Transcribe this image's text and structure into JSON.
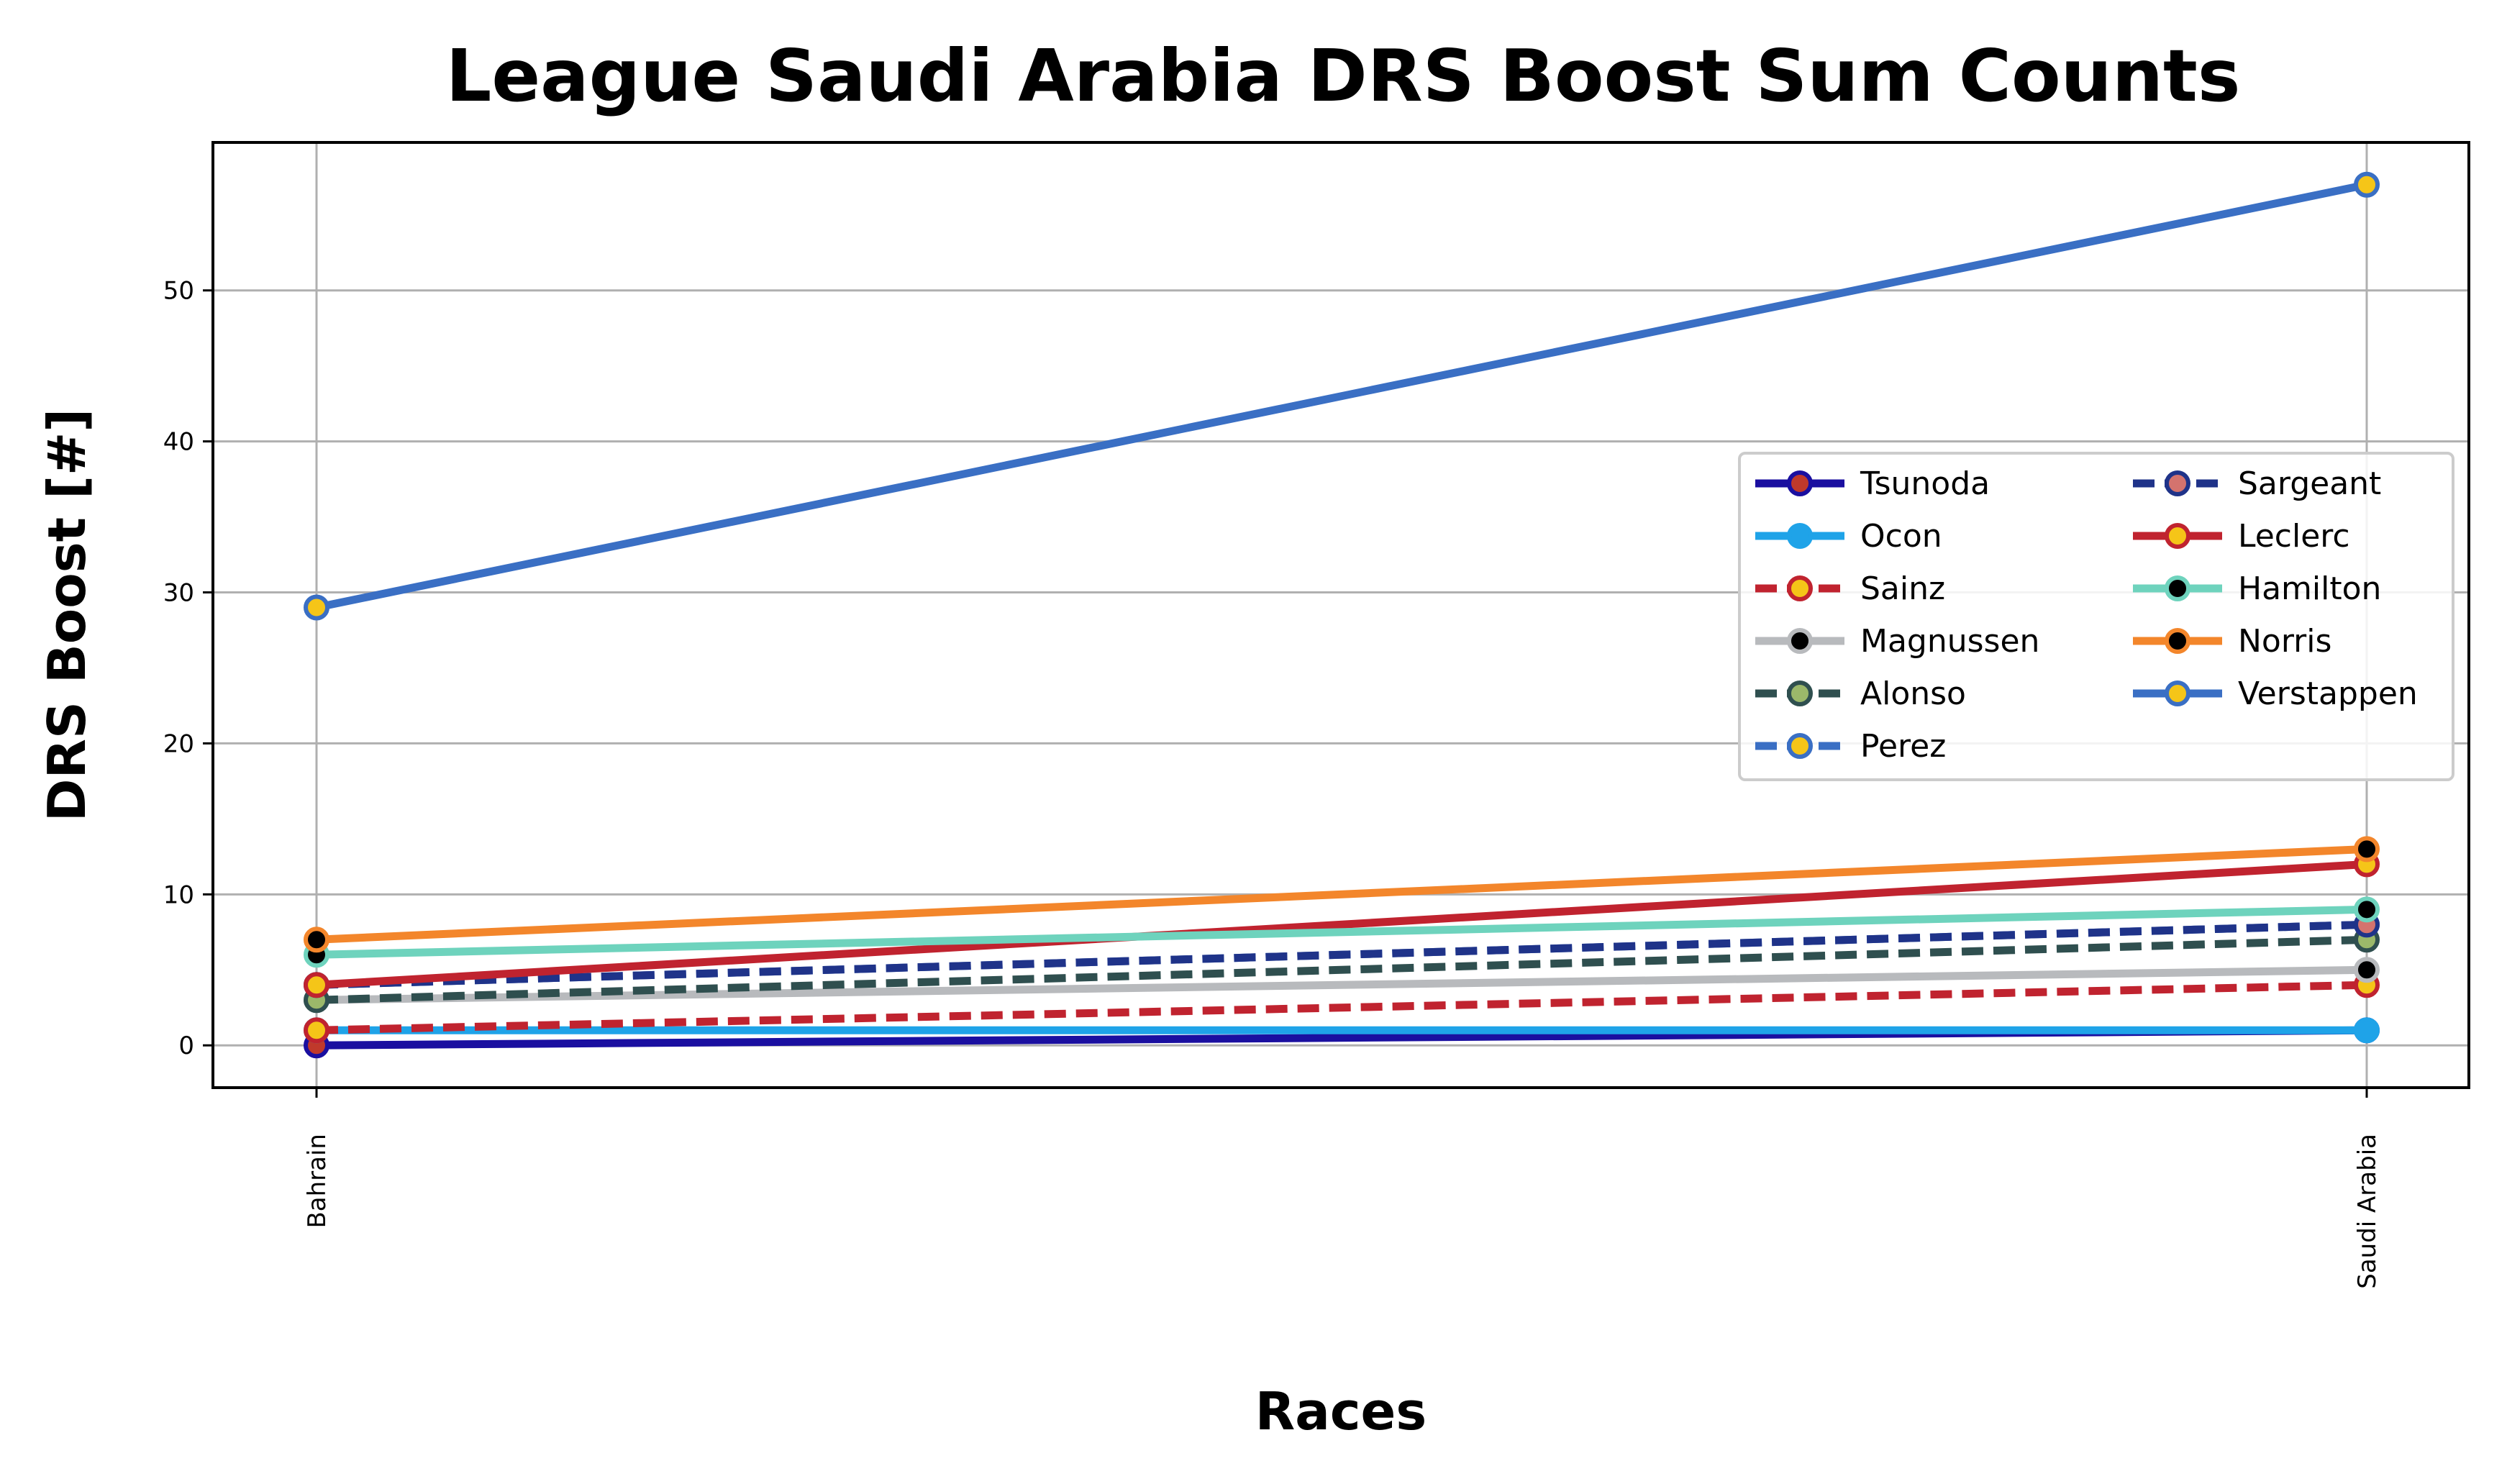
{
  "chart_data": {
    "type": "line",
    "title": "League Saudi Arabia DRS Boost Sum Counts",
    "xlabel": "Races",
    "ylabel": "DRS Boost [#]",
    "categories": [
      "Bahrain",
      "Saudi Arabia"
    ],
    "ylim": [
      -2.8,
      59.8
    ],
    "yticks": [
      0,
      10,
      20,
      30,
      40,
      50
    ],
    "grid": true,
    "legend_position": "center-right",
    "legend_columns": 2,
    "series": [
      {
        "name": "Tsunoda",
        "values": [
          0,
          1
        ],
        "color": "#1a0fa0",
        "marker_fill": "#c0392b",
        "style": "solid"
      },
      {
        "name": "Ocon",
        "values": [
          1,
          1
        ],
        "color": "#1fa3e8",
        "marker_fill": "#1fa3e8",
        "style": "solid"
      },
      {
        "name": "Sainz",
        "values": [
          1,
          4
        ],
        "color": "#c0232f",
        "marker_fill": "#f5c518",
        "style": "dashed"
      },
      {
        "name": "Magnussen",
        "values": [
          3,
          5
        ],
        "color": "#b8babd",
        "marker_fill": "#000000",
        "style": "solid"
      },
      {
        "name": "Alonso",
        "values": [
          3,
          7
        ],
        "color": "#2f4f4f",
        "marker_fill": "#9bb86a",
        "style": "dashed"
      },
      {
        "name": "Perez",
        "values": [
          4,
          8
        ],
        "color": "#3a6fc4",
        "marker_fill": "#f5c518",
        "style": "dashed"
      },
      {
        "name": "Sargeant",
        "values": [
          4,
          8
        ],
        "color": "#1f3389",
        "marker_fill": "#d4736e",
        "style": "dashed"
      },
      {
        "name": "Leclerc",
        "values": [
          4,
          12
        ],
        "color": "#c0232f",
        "marker_fill": "#f5c518",
        "style": "solid"
      },
      {
        "name": "Hamilton",
        "values": [
          6,
          9
        ],
        "color": "#6ed3bd",
        "marker_fill": "#000000",
        "style": "solid"
      },
      {
        "name": "Norris",
        "values": [
          7,
          13
        ],
        "color": "#f3862b",
        "marker_fill": "#000000",
        "style": "solid"
      },
      {
        "name": "Verstappen",
        "values": [
          29,
          57
        ],
        "color": "#3a6fc4",
        "marker_fill": "#f5c518",
        "style": "solid"
      }
    ]
  }
}
